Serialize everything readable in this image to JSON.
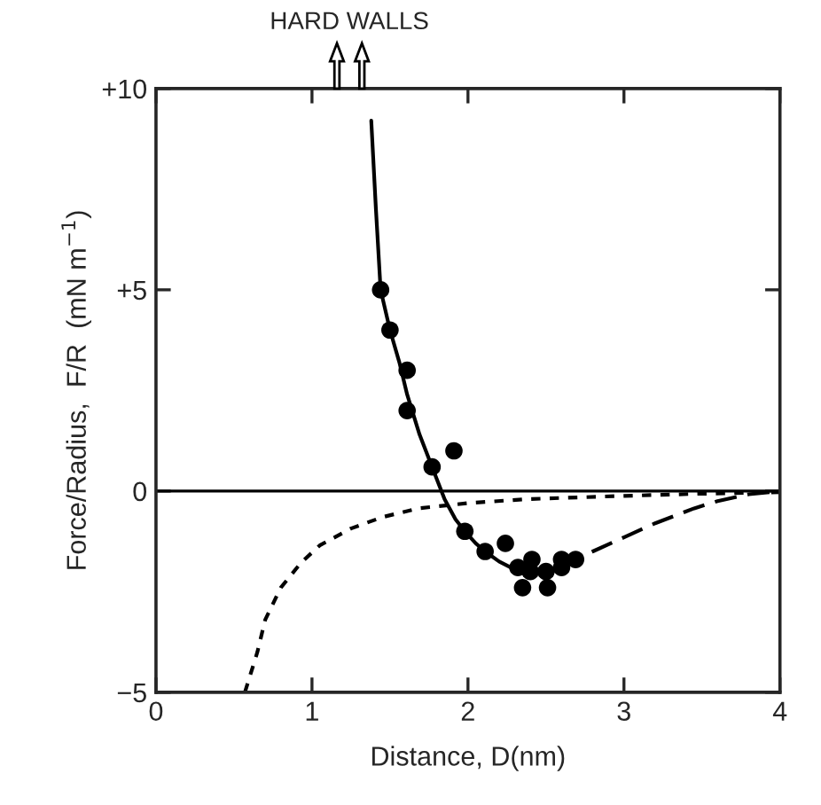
{
  "chart_data": {
    "type": "scatter",
    "xlabel": "Distance, D(nm)",
    "ylabel": "Force/Radius,  F/R  (mN m$^{−1}$)",
    "xlim": [
      0,
      4
    ],
    "ylim": [
      -5,
      10
    ],
    "xticks": [
      0,
      1,
      2,
      3,
      4
    ],
    "yticks": [
      {
        "value": -5,
        "label": "−5"
      },
      {
        "value": 0,
        "label": "0"
      },
      {
        "value": 5,
        "label": "+5"
      },
      {
        "value": 10,
        "label": "+10"
      }
    ],
    "grid": false,
    "legend": false,
    "annotations": [
      "HARD WALLS"
    ],
    "ref_lines": [
      {
        "axis": "y",
        "value": 0,
        "color": "#000000",
        "line_style": "solid"
      }
    ],
    "series": [
      {
        "color": "#000000",
        "marker": "circle",
        "x": [
          1.44,
          1.5,
          1.61,
          1.61,
          1.77,
          1.91,
          1.98,
          2.11,
          2.24,
          2.32,
          2.41,
          2.4,
          2.35,
          2.51,
          2.5,
          2.6,
          2.6,
          2.69
        ],
        "values": [
          5.0,
          4.0,
          3.0,
          2.0,
          0.6,
          1.0,
          -1.0,
          -1.5,
          -1.3,
          -1.9,
          -1.7,
          -2.0,
          -2.4,
          -2.4,
          -2.0,
          -1.9,
          -1.7,
          -1.7
        ]
      },
      {
        "type": "line",
        "color": "#000000",
        "line_style": "solid",
        "marker": "none",
        "x": [
          1.38,
          1.41,
          1.44,
          1.5,
          1.56,
          1.61,
          1.69,
          1.77,
          1.85,
          1.92,
          1.98,
          2.05,
          2.11,
          2.2,
          2.3,
          2.4,
          2.5,
          2.6
        ],
        "values": [
          9.2,
          7.0,
          5.0,
          4.0,
          3.2,
          2.4,
          1.4,
          0.6,
          -0.2,
          -0.7,
          -1.0,
          -1.3,
          -1.5,
          -1.75,
          -1.95,
          -2.05,
          -2.0,
          -1.85
        ]
      },
      {
        "type": "line",
        "color": "#000000",
        "line_style": "dashed",
        "marker": "none",
        "x": [
          2.6,
          2.8,
          3.0,
          3.2,
          3.45,
          3.6,
          3.8,
          4.0
        ],
        "values": [
          -1.85,
          -1.5,
          -1.15,
          -0.8,
          -0.43,
          -0.25,
          -0.08,
          0.0
        ]
      },
      {
        "type": "line",
        "color": "#000000",
        "line_style": "dotted",
        "marker": "none",
        "x": [
          0.57,
          0.65,
          0.7,
          0.8,
          0.93,
          1.05,
          1.25,
          1.45,
          1.68,
          2.0,
          2.38,
          3.0,
          3.45,
          4.0
        ],
        "values": [
          -5.0,
          -4.0,
          -3.2,
          -2.4,
          -1.78,
          -1.35,
          -0.93,
          -0.65,
          -0.43,
          -0.3,
          -0.2,
          -0.12,
          -0.07,
          -0.03
        ]
      }
    ]
  }
}
